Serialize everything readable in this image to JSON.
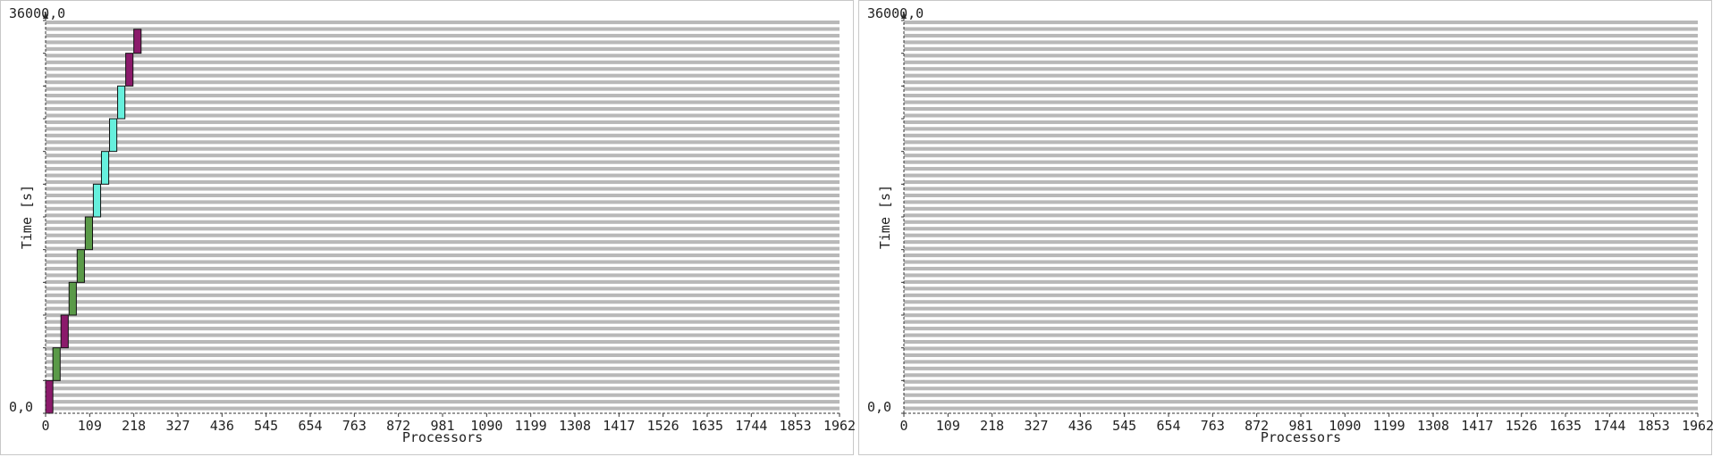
{
  "chart_data": [
    {
      "type": "gantt",
      "xlabel": "Processors",
      "ylabel": "Time [s]",
      "xlim": [
        0,
        1962
      ],
      "ylim": [
        0,
        36000
      ],
      "y_top_label": "36000,0",
      "y_bottom_label": "0,0",
      "x_ticks": [
        "0",
        "109",
        "218",
        "327",
        "436",
        "545",
        "654",
        "763",
        "872",
        "981",
        "1090",
        "1199",
        "1308",
        "1417",
        "1526",
        "1635",
        "1744",
        "1853",
        "1962"
      ],
      "colors": {
        "purple": "#8b1a6b",
        "green": "#5a9a48",
        "cyan": "#66f0dd"
      },
      "jobs": [
        {
          "p_start": 0,
          "p_end": 18,
          "t_start": 0,
          "t_end": 3000,
          "color": "purple"
        },
        {
          "p_start": 18,
          "p_end": 36,
          "t_start": 3000,
          "t_end": 6000,
          "color": "green"
        },
        {
          "p_start": 38,
          "p_end": 56,
          "t_start": 6000,
          "t_end": 9000,
          "color": "purple"
        },
        {
          "p_start": 58,
          "p_end": 76,
          "t_start": 9000,
          "t_end": 12000,
          "color": "green"
        },
        {
          "p_start": 78,
          "p_end": 96,
          "t_start": 12000,
          "t_end": 15000,
          "color": "green"
        },
        {
          "p_start": 98,
          "p_end": 116,
          "t_start": 15000,
          "t_end": 18000,
          "color": "green"
        },
        {
          "p_start": 118,
          "p_end": 136,
          "t_start": 18000,
          "t_end": 21000,
          "color": "cyan"
        },
        {
          "p_start": 138,
          "p_end": 156,
          "t_start": 21000,
          "t_end": 24000,
          "color": "cyan"
        },
        {
          "p_start": 158,
          "p_end": 176,
          "t_start": 24000,
          "t_end": 27000,
          "color": "cyan"
        },
        {
          "p_start": 178,
          "p_end": 196,
          "t_start": 27000,
          "t_end": 30000,
          "color": "cyan"
        },
        {
          "p_start": 198,
          "p_end": 216,
          "t_start": 30000,
          "t_end": 33000,
          "color": "purple"
        },
        {
          "p_start": 218,
          "p_end": 236,
          "t_start": 33000,
          "t_end": 35200,
          "color": "purple"
        }
      ]
    },
    {
      "type": "gantt",
      "xlabel": "Processors",
      "ylabel": "Time [s]",
      "xlim": [
        0,
        1962
      ],
      "ylim": [
        0,
        36000
      ],
      "y_top_label": "36000,0",
      "y_bottom_label": "0,0",
      "x_ticks": [
        "0",
        "109",
        "218",
        "327",
        "436",
        "545",
        "654",
        "763",
        "872",
        "981",
        "1090",
        "1199",
        "1308",
        "1417",
        "1526",
        "1635",
        "1744",
        "1853",
        "1962"
      ],
      "colors": {
        "purple": "#8b1a6b",
        "green": "#5a9a48",
        "cyan": "#66f0dd"
      },
      "jobs": []
    }
  ]
}
